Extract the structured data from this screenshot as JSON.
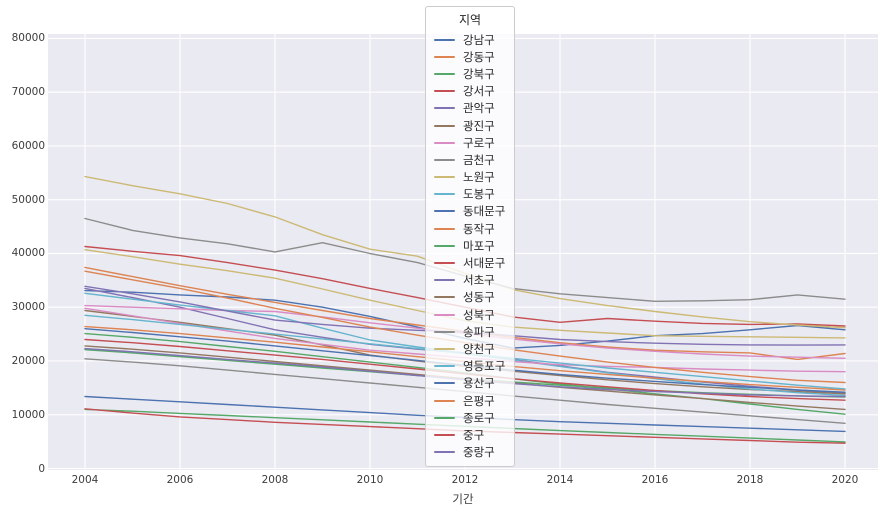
{
  "chart_data": {
    "type": "line",
    "xlabel": "기간",
    "legend_title": "지역",
    "x": [
      2004,
      2005,
      2006,
      2007,
      2008,
      2009,
      2010,
      2011,
      2012,
      2013,
      2014,
      2015,
      2016,
      2017,
      2018,
      2019,
      2020
    ],
    "x_ticks": [
      "2004",
      "2006",
      "2008",
      "2010",
      "2012",
      "2014",
      "2016",
      "2018",
      "2020"
    ],
    "y_ticks": [
      "0",
      "10000",
      "20000",
      "30000",
      "40000",
      "50000",
      "60000",
      "70000",
      "80000"
    ],
    "ylim": [
      0,
      80000
    ],
    "xlim": [
      2004,
      2020
    ],
    "grid": "on",
    "legend_position": "top-center",
    "plot_bg_color": "#eaeaf2",
    "grid_color": "#ffffff",
    "series": [
      {
        "name": "강남구",
        "color": "#4C72B0",
        "values": [
          33100,
          32800,
          32300,
          31900,
          31300,
          30000,
          28300,
          26300,
          24200,
          22400,
          22900,
          23700,
          24700,
          25100,
          25800,
          26600,
          25800
        ]
      },
      {
        "name": "강동구",
        "color": "#DD8452",
        "values": [
          37400,
          35700,
          34000,
          32400,
          30900,
          29400,
          27900,
          26700,
          25500,
          24400,
          23400,
          22600,
          22000,
          21700,
          21500,
          20300,
          21400
        ]
      },
      {
        "name": "강북구",
        "color": "#55A868",
        "values": [
          25100,
          24400,
          23600,
          22700,
          21800,
          20800,
          19800,
          18800,
          17800,
          16700,
          15700,
          14800,
          13900,
          13000,
          12000,
          11000,
          10100
        ]
      },
      {
        "name": "강서구",
        "color": "#C44E52",
        "values": [
          41300,
          40400,
          39600,
          38300,
          36900,
          35300,
          33500,
          31800,
          30000,
          28200,
          27200,
          27900,
          27400,
          27000,
          26800,
          26900,
          26500
        ]
      },
      {
        "name": "관악구",
        "color": "#8172B3",
        "values": [
          33500,
          31800,
          30000,
          27900,
          25800,
          24400,
          23100,
          22200,
          21500,
          20300,
          19100,
          17900,
          17000,
          16100,
          15300,
          14600,
          14000
        ]
      },
      {
        "name": "광진구",
        "color": "#937860",
        "values": [
          29400,
          28300,
          27200,
          26000,
          24800,
          23000,
          21100,
          20000,
          19000,
          18100,
          17300,
          16500,
          15800,
          15200,
          14700,
          14300,
          13900
        ]
      },
      {
        "name": "구로구",
        "color": "#DA8BC3",
        "values": [
          30300,
          30000,
          29700,
          29400,
          29200,
          28200,
          27100,
          26100,
          25100,
          24100,
          23200,
          22400,
          21800,
          21300,
          20900,
          20700,
          20500
        ]
      },
      {
        "name": "금천구",
        "color": "#8C8C8C",
        "values": [
          20400,
          19800,
          19100,
          18300,
          17500,
          16700,
          15900,
          15100,
          14300,
          13500,
          12700,
          11900,
          11200,
          10500,
          9800,
          9100,
          8400
        ]
      },
      {
        "name": "노원구",
        "color": "#CCB974",
        "values": [
          54300,
          52600,
          51100,
          49300,
          46800,
          43500,
          40800,
          39500,
          36300,
          33300,
          31600,
          30300,
          29200,
          28200,
          27300,
          26700,
          26200
        ]
      },
      {
        "name": "도봉구",
        "color": "#64B5CD",
        "values": [
          32600,
          31500,
          30400,
          29400,
          28400,
          26100,
          23900,
          22600,
          21400,
          20200,
          19000,
          17800,
          16700,
          15700,
          14800,
          14100,
          13600
        ]
      },
      {
        "name": "동대문구",
        "color": "#4C72B0",
        "values": [
          26000,
          25300,
          24500,
          23700,
          22800,
          21900,
          21000,
          20100,
          19200,
          18300,
          17500,
          16800,
          16200,
          15600,
          15100,
          14600,
          14200
        ]
      },
      {
        "name": "동작구",
        "color": "#DD8452",
        "values": [
          26400,
          25800,
          25100,
          24300,
          23500,
          22600,
          21700,
          20800,
          19900,
          19000,
          18200,
          17500,
          16800,
          16200,
          15600,
          15100,
          14600
        ]
      },
      {
        "name": "마포구",
        "color": "#55A868",
        "values": [
          22100,
          21500,
          20800,
          20100,
          19400,
          18700,
          18000,
          17300,
          16700,
          16100,
          15500,
          15000,
          14500,
          14100,
          13800,
          13500,
          13300
        ]
      },
      {
        "name": "서대문구",
        "color": "#C44E52",
        "values": [
          24000,
          23400,
          22700,
          21900,
          21100,
          20300,
          19400,
          18500,
          17600,
          16700,
          15900,
          15200,
          14500,
          13900,
          13400,
          13000,
          12700
        ]
      },
      {
        "name": "서초구",
        "color": "#8172B3",
        "values": [
          33900,
          32500,
          31000,
          29300,
          27600,
          26800,
          26100,
          25700,
          25400,
          24700,
          24000,
          23600,
          23300,
          23100,
          23000,
          22950,
          23000
        ]
      },
      {
        "name": "성동구",
        "color": "#937860",
        "values": [
          22800,
          22200,
          21500,
          20700,
          19900,
          19100,
          18300,
          17500,
          16700,
          15900,
          15100,
          14400,
          13700,
          13000,
          12300,
          11600,
          11000
        ]
      },
      {
        "name": "성북구",
        "color": "#DA8BC3",
        "values": [
          29800,
          28400,
          27000,
          25600,
          24200,
          23100,
          22000,
          21300,
          20600,
          19900,
          19300,
          19000,
          18800,
          18500,
          18300,
          18100,
          18000
        ]
      },
      {
        "name": "송파구",
        "color": "#8C8C8C",
        "values": [
          46500,
          44300,
          42900,
          41800,
          40300,
          42000,
          40000,
          38300,
          35800,
          33500,
          32500,
          31800,
          31100,
          31200,
          31400,
          32300,
          31500
        ]
      },
      {
        "name": "양천구",
        "color": "#CCB974",
        "values": [
          40700,
          39400,
          38000,
          36800,
          35400,
          33400,
          31300,
          29400,
          27500,
          26300,
          25700,
          25200,
          24700,
          24600,
          24500,
          24400,
          24300
        ]
      },
      {
        "name": "영등포구",
        "color": "#64B5CD",
        "values": [
          28500,
          27700,
          26800,
          25900,
          25000,
          24100,
          23200,
          22300,
          21400,
          20500,
          19600,
          18700,
          17900,
          17100,
          16300,
          15500,
          14800
        ]
      },
      {
        "name": "용산구",
        "color": "#4C72B0",
        "values": [
          13400,
          12900,
          12400,
          11900,
          11400,
          10900,
          10400,
          9900,
          9500,
          9100,
          8700,
          8400,
          8100,
          7800,
          7500,
          7200,
          6900
        ]
      },
      {
        "name": "은평구",
        "color": "#DD8452",
        "values": [
          36700,
          35100,
          33500,
          31700,
          29800,
          28100,
          26300,
          24800,
          23400,
          22100,
          20900,
          19800,
          18800,
          17900,
          17100,
          16400,
          16000
        ]
      },
      {
        "name": "종로구",
        "color": "#55A868",
        "values": [
          11000,
          10650,
          10250,
          9850,
          9450,
          9050,
          8650,
          8250,
          7850,
          7450,
          7050,
          6700,
          6350,
          6000,
          5650,
          5300,
          4950
        ]
      },
      {
        "name": "중구",
        "color": "#C44E52",
        "values": [
          11100,
          10300,
          9600,
          9100,
          8600,
          8200,
          7800,
          7400,
          7000,
          6700,
          6400,
          6100,
          5800,
          5500,
          5200,
          4900,
          4700
        ]
      },
      {
        "name": "중랑구",
        "color": "#8172B3",
        "values": [
          22300,
          21700,
          21000,
          20300,
          19600,
          18900,
          18100,
          17300,
          16500,
          15800,
          15200,
          14700,
          14300,
          14000,
          13700,
          13500,
          13400
        ]
      }
    ]
  }
}
